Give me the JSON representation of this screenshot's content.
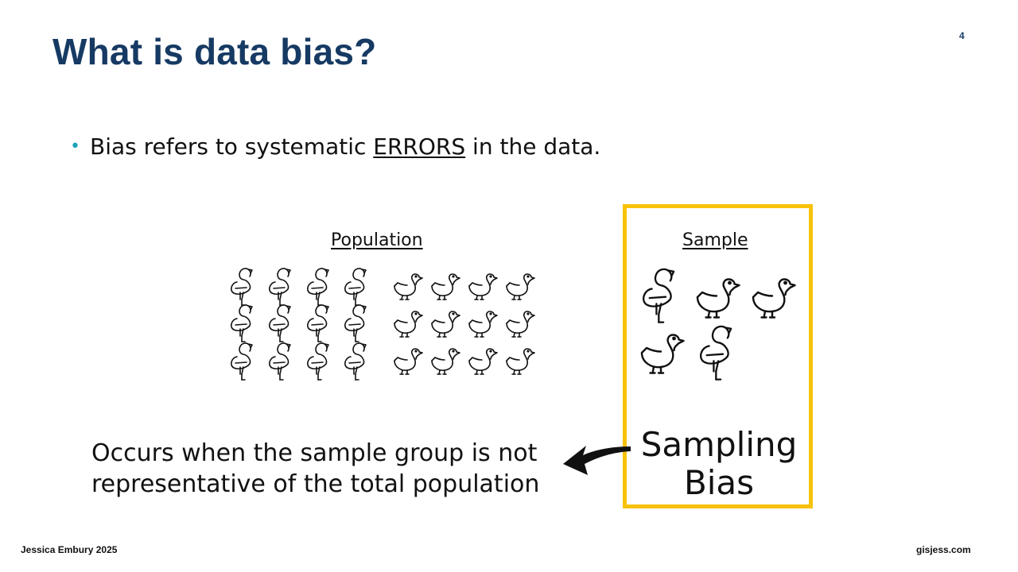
{
  "slide": {
    "title": "What is data bias?",
    "page_number": "4",
    "bullet": {
      "before": "Bias refers to systematic ",
      "emphasis": "ERRORS",
      "after": " in the data."
    },
    "population_label": "Population",
    "sample_label": "Sample",
    "bias_label_line1": "Sampling",
    "bias_label_line2": "Bias",
    "explanation_line1": "Occurs when the sample group is not",
    "explanation_line2": "representative of the total population",
    "population": {
      "flamingos": 12,
      "ducks": 12
    },
    "sample": {
      "flamingos": 2,
      "ducks": 3
    },
    "colors": {
      "title": "#163a63",
      "bullet": "#1aa5b8",
      "highlight_border": "#f7c20a"
    }
  },
  "footer": {
    "author": "Jessica Embury 2025",
    "site": "gisjess.com"
  }
}
